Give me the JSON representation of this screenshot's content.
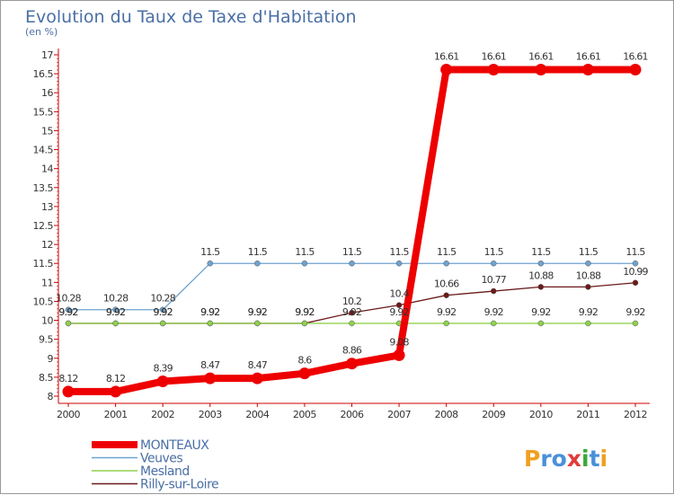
{
  "chart_data": {
    "type": "line",
    "title": "Evolution du Taux de Taxe d'Habitation",
    "subtitle": "(en %)",
    "xlabel": "",
    "ylabel": "(en %)",
    "ylim": [
      8,
      17
    ],
    "yticks": [
      8,
      8.5,
      9,
      9.5,
      10,
      10.5,
      11,
      11.5,
      12,
      12.5,
      13,
      13.5,
      14,
      14.5,
      15,
      15.5,
      16,
      16.5,
      17
    ],
    "ytick_labels": [
      "8",
      "8.5",
      "9",
      "9.5",
      "10",
      "10.5",
      "11",
      "11.5",
      "12",
      "12.5",
      "13",
      "13.5",
      "14",
      "14.5",
      "15",
      "15.5",
      "16",
      "16.5",
      "17"
    ],
    "categories": [
      "2000",
      "2001",
      "2002",
      "2003",
      "2004",
      "2005",
      "2006",
      "2007",
      "2008",
      "2009",
      "2010",
      "2011",
      "2012"
    ],
    "legend_position": "bottom-left",
    "grid": false,
    "series": [
      {
        "name": "Rilly-sur-Loire",
        "color": "#6b1a1a",
        "values": [
          9.92,
          9.92,
          9.92,
          9.92,
          9.92,
          9.92,
          10.2,
          10.4,
          10.66,
          10.77,
          10.88,
          10.88,
          10.99
        ],
        "labels": [
          "9.92",
          "9.92",
          "9.92",
          "9.92",
          "9.92",
          "9.92",
          "10.2",
          "10.4",
          "10.66",
          "10.77",
          "10.88",
          "10.88",
          "10.99"
        ]
      },
      {
        "name": "Mesland",
        "color": "#8fd14f",
        "values": [
          9.92,
          9.92,
          9.92,
          9.92,
          9.92,
          9.92,
          9.92,
          9.92,
          9.92,
          9.92,
          9.92,
          9.92,
          9.92
        ],
        "labels": [
          "9.92",
          "9.92",
          "9.92",
          "9.92",
          "9.92",
          "9.92",
          "9.92",
          "9.92",
          "9.92",
          "9.92",
          "9.92",
          "9.92",
          "9.92"
        ]
      },
      {
        "name": "Veuves",
        "color": "#6fa3cf",
        "values": [
          10.28,
          10.28,
          10.28,
          11.5,
          11.5,
          11.5,
          11.5,
          11.5,
          11.5,
          11.5,
          11.5,
          11.5,
          11.5
        ],
        "labels": [
          "10.28",
          "10.28",
          "10.28",
          "11.5",
          "11.5",
          "11.5",
          "11.5",
          "11.5",
          "11.5",
          "11.5",
          "11.5",
          "11.5",
          "11.5"
        ]
      },
      {
        "name": "MONTEAUX",
        "color": "#ee0000",
        "values": [
          8.12,
          8.12,
          8.39,
          8.47,
          8.47,
          8.6,
          8.86,
          9.08,
          16.61,
          16.61,
          16.61,
          16.61,
          16.61
        ],
        "labels": [
          "8.12",
          "8.12",
          "8.39",
          "8.47",
          "8.47",
          "8.6",
          "8.86",
          "9.08",
          "16.61",
          "16.61",
          "16.61",
          "16.61",
          "16.61"
        ]
      }
    ]
  },
  "legend": {
    "items": [
      {
        "name": "MONTEAUX",
        "color": "#ee0000",
        "weight": "thick"
      },
      {
        "name": "Veuves",
        "color": "#6fa3cf",
        "weight": "thin"
      },
      {
        "name": "Mesland",
        "color": "#8fd14f",
        "weight": "thin"
      },
      {
        "name": "Rilly-sur-Loire",
        "color": "#6b1a1a",
        "weight": "thin"
      }
    ]
  },
  "logo": {
    "text": "Proxiti",
    "letters": [
      {
        "ch": "P",
        "color": "#f0a020"
      },
      {
        "ch": "r",
        "color": "#4a90d9"
      },
      {
        "ch": "o",
        "color": "#4a90d9"
      },
      {
        "ch": "x",
        "color": "#e23b3b"
      },
      {
        "ch": "i",
        "color": "#3aa83a"
      },
      {
        "ch": "t",
        "color": "#4a90d9"
      },
      {
        "ch": "i",
        "color": "#f0a020"
      }
    ]
  },
  "colors": {
    "title": "#4a6fa5",
    "axis": "#cc0000",
    "text": "#333333"
  }
}
